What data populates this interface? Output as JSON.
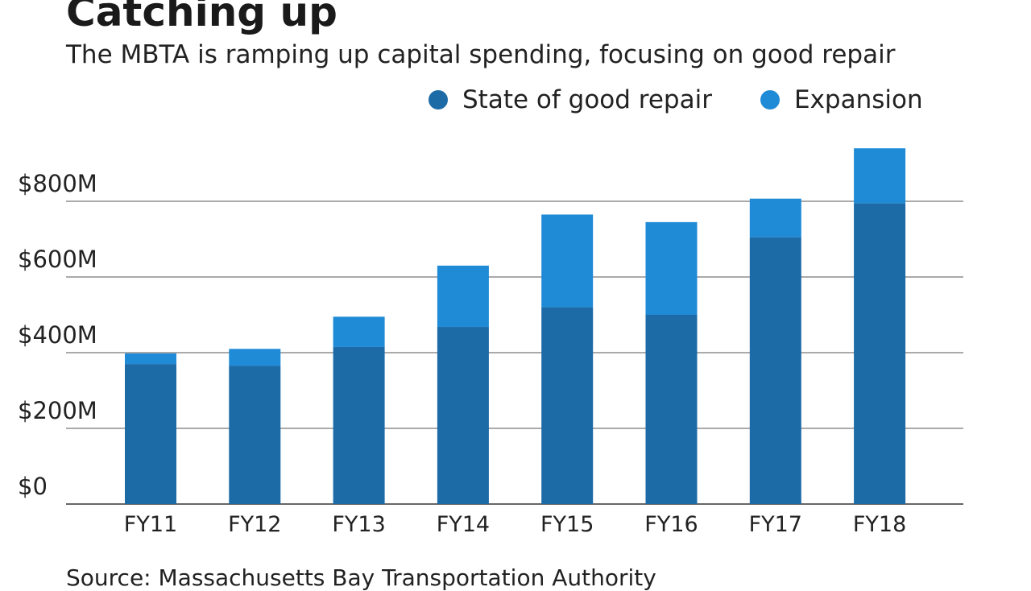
{
  "chart_data": {
    "type": "bar",
    "stacked": true,
    "title": "Catching up",
    "subtitle": "The MBTA is ramping up capital spending, focusing on good repair",
    "categories": [
      "FY11",
      "FY12",
      "FY13",
      "FY14",
      "FY15",
      "FY16",
      "FY17",
      "FY18"
    ],
    "series": [
      {
        "name": "State of good repair",
        "color": "#1c6aa6",
        "values": [
          370,
          365,
          415,
          468,
          520,
          500,
          705,
          795
        ]
      },
      {
        "name": "Expansion",
        "color": "#1f8ad6",
        "values": [
          28,
          45,
          80,
          162,
          245,
          245,
          102,
          145
        ]
      }
    ],
    "yticks": [
      0,
      200,
      400,
      600,
      800
    ],
    "ytick_labels": [
      "$0",
      "$200M",
      "$400M",
      "$600M",
      "$800M"
    ],
    "ylim": [
      0,
      960
    ],
    "xlabel": "",
    "ylabel": "",
    "grid": true,
    "legend_position": "top-right",
    "source": "Source: Massachusetts Bay Transportation Authority"
  }
}
